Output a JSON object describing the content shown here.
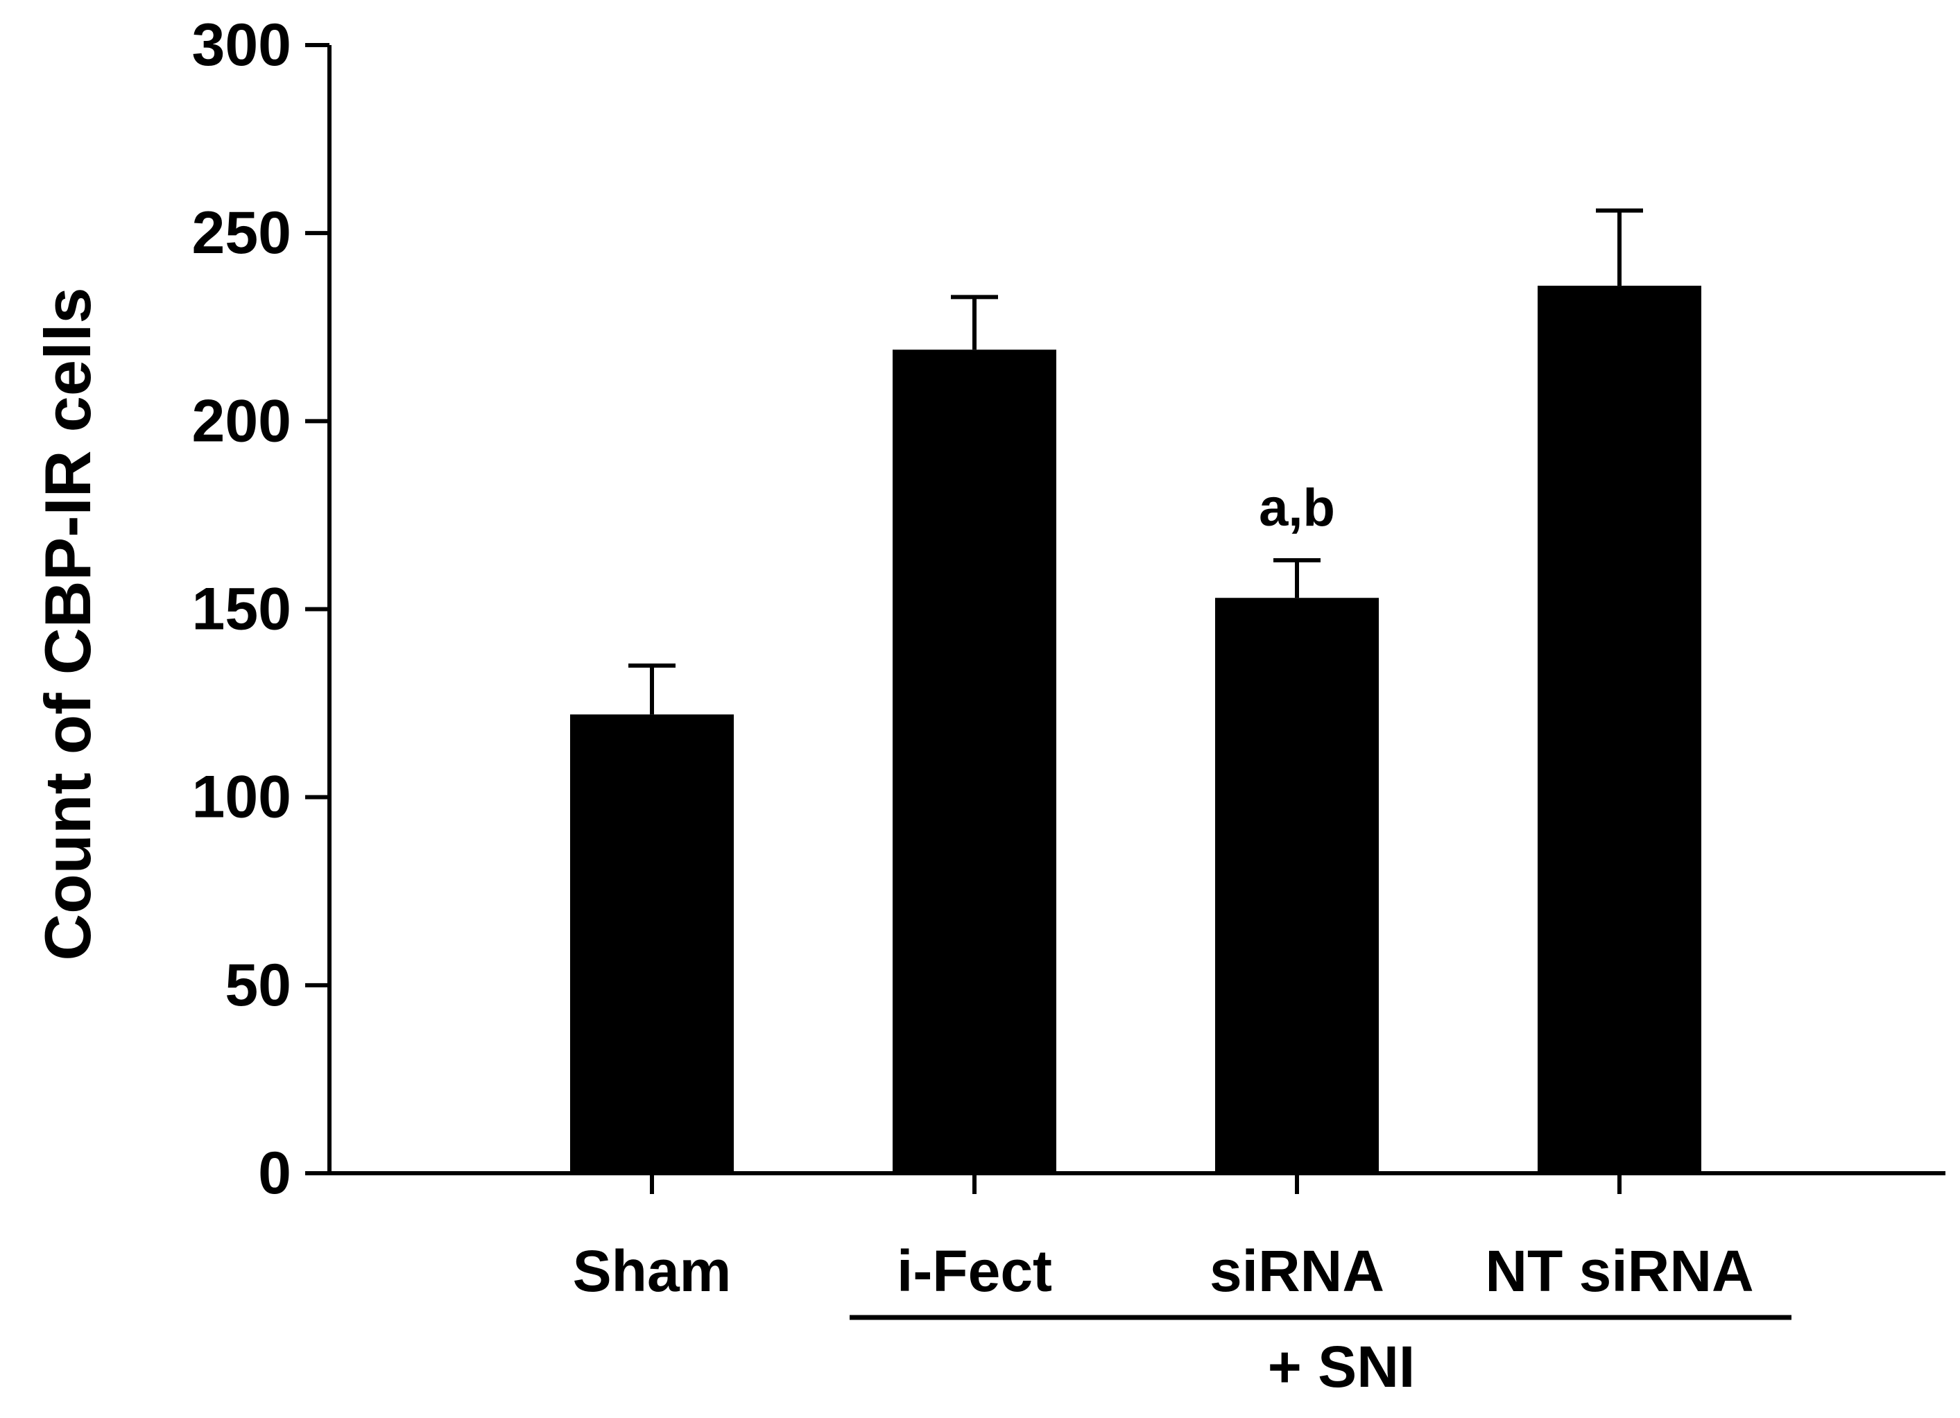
{
  "chart_data": {
    "type": "bar",
    "title": "",
    "xlabel": "",
    "ylabel": "Count of CBP-IR cells",
    "ylim": [
      0,
      300
    ],
    "yticks": [
      0,
      50,
      100,
      150,
      200,
      250,
      300
    ],
    "categories": [
      "Sham",
      "i-Fect",
      "siRNA",
      "NT siRNA"
    ],
    "values": [
      122,
      219,
      153,
      236
    ],
    "errors": [
      13,
      14,
      10,
      20
    ],
    "annotations": [
      {
        "category": "siRNA",
        "text": "a,b"
      }
    ],
    "group": {
      "label": "+ SNI",
      "categories": [
        "i-Fect",
        "siRNA",
        "NT siRNA"
      ]
    },
    "colors": {
      "bar": "#000000",
      "axis": "#000000",
      "background": "#ffffff"
    },
    "grid": false,
    "legend": "none"
  }
}
